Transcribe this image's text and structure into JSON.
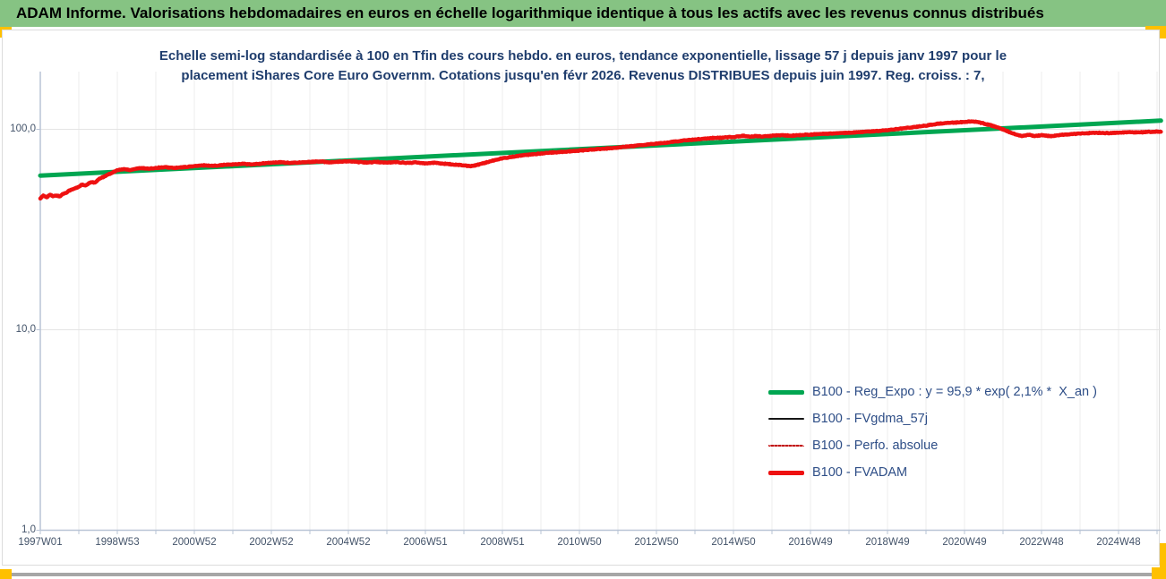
{
  "header": {
    "title": "ADAM Informe. Valorisations hebdomadaires en euros en échelle logarithmique identique à tous les actifs avec les revenus connus distribués"
  },
  "colors": {
    "header_background": "#86c383",
    "accent_yellow": "#ffc000",
    "bottom_bar_gray": "#a6a6a6",
    "title_navy": "#1f3d6d",
    "legend_text": "#2e4e87",
    "axis_label": "#44546a",
    "axis_line": "#b9c4d6",
    "gridline_vertical": "#ececec",
    "gridline_horizontal": "#e4e4e4"
  },
  "chart_data": {
    "type": "line",
    "title_line1": "Echelle semi-log standardisée à 100 en Tfin des cours hebdo. en euros, tendance exponentielle, lissage 57 j depuis janv 1997 pour le",
    "title_line2": "placement iShares Core Euro Governm. Cotations jusqu'en févr 2026. Revenus DISTRIBUES depuis juin 1997. Reg. croiss. : 7,",
    "y_axis": {
      "scale": "log10",
      "range": [
        1,
        183
      ],
      "ticks": [
        {
          "label": "100,0",
          "value": 100
        },
        {
          "label": "10,0",
          "value": 10
        },
        {
          "label": "1,0",
          "value": 1
        }
      ]
    },
    "x_axis": {
      "range_years": [
        1997.0,
        2026.15
      ],
      "gridline_every_years": 1,
      "ticks": [
        {
          "label": "1997W01",
          "year": 1997
        },
        {
          "label": "1998W53",
          "year": 1999
        },
        {
          "label": "2000W52",
          "year": 2001
        },
        {
          "label": "2002W52",
          "year": 2003
        },
        {
          "label": "2004W52",
          "year": 2005
        },
        {
          "label": "2006W51",
          "year": 2007
        },
        {
          "label": "2008W51",
          "year": 2009
        },
        {
          "label": "2010W50",
          "year": 2011
        },
        {
          "label": "2012W50",
          "year": 2013
        },
        {
          "label": "2014W50",
          "year": 2015
        },
        {
          "label": "2016W49",
          "year": 2017
        },
        {
          "label": "2018W49",
          "year": 2019
        },
        {
          "label": "2020W49",
          "year": 2021
        },
        {
          "label": "2022W48",
          "year": 2023
        },
        {
          "label": "2024W48",
          "year": 2025
        }
      ]
    },
    "legend_position": "inside-lower-right",
    "series": [
      {
        "name": "B100 - Reg_Expo : y = 95,9 * exp( 2,1% *  X_an )",
        "color": "#00a651",
        "style": "solid",
        "weight": "thick",
        "width": 5,
        "kind": "exponential-trend",
        "points": [
          [
            1997.0,
            58.8
          ],
          [
            2026.1,
            110.5
          ]
        ]
      },
      {
        "name": "B100 - FVgdma_57j",
        "color": "#161616",
        "style": "solid",
        "weight": "thin",
        "width": 2,
        "kind": "moving-average-of-FVADAM"
      },
      {
        "name": "B100 - Perfo. absolue",
        "color": "#c00000",
        "style": "dotted",
        "weight": "thin",
        "width": 1.5,
        "kind": "coincides-with-FVADAM"
      },
      {
        "name": "B100 - FVADAM",
        "color": "#ee1111",
        "style": "solid",
        "weight": "thick",
        "width": 4.5,
        "kind": "weekly-values",
        "noise": 0.004,
        "points": [
          [
            1997.0,
            45.3
          ],
          [
            1997.08,
            46.6
          ],
          [
            1997.17,
            45.9
          ],
          [
            1997.25,
            47.2
          ],
          [
            1997.33,
            46.3
          ],
          [
            1997.42,
            46.8
          ],
          [
            1997.5,
            46.2
          ],
          [
            1997.58,
            47.5
          ],
          [
            1997.67,
            48.3
          ],
          [
            1997.75,
            49.5
          ],
          [
            1997.83,
            50.1
          ],
          [
            1997.92,
            50.9
          ],
          [
            1998.0,
            51.7
          ],
          [
            1998.08,
            53.0
          ],
          [
            1998.17,
            52.3
          ],
          [
            1998.25,
            53.5
          ],
          [
            1998.33,
            54.7
          ],
          [
            1998.42,
            54.1
          ],
          [
            1998.5,
            55.9
          ],
          [
            1998.58,
            57.3
          ],
          [
            1998.67,
            58.1
          ],
          [
            1998.75,
            59.5
          ],
          [
            1998.83,
            60.3
          ],
          [
            1998.92,
            61.5
          ],
          [
            1999.0,
            62.5
          ],
          [
            1999.17,
            63.3
          ],
          [
            1999.33,
            62.7
          ],
          [
            1999.5,
            63.7
          ],
          [
            1999.67,
            64.1
          ],
          [
            1999.83,
            63.5
          ],
          [
            2000.0,
            64.2
          ],
          [
            2000.25,
            64.7
          ],
          [
            2000.5,
            64.1
          ],
          [
            2000.75,
            64.8
          ],
          [
            2001.0,
            65.5
          ],
          [
            2001.25,
            66.1
          ],
          [
            2001.5,
            65.7
          ],
          [
            2001.75,
            66.4
          ],
          [
            2002.0,
            66.8
          ],
          [
            2002.25,
            67.3
          ],
          [
            2002.5,
            66.7
          ],
          [
            2002.75,
            67.5
          ],
          [
            2003.0,
            68.1
          ],
          [
            2003.25,
            68.5
          ],
          [
            2003.5,
            67.9
          ],
          [
            2003.75,
            68.4
          ],
          [
            2004.0,
            68.7
          ],
          [
            2004.25,
            69.1
          ],
          [
            2004.5,
            68.5
          ],
          [
            2004.75,
            68.9
          ],
          [
            2005.0,
            69.2
          ],
          [
            2005.25,
            68.7
          ],
          [
            2005.5,
            68.3
          ],
          [
            2005.75,
            68.7
          ],
          [
            2006.0,
            68.2
          ],
          [
            2006.25,
            68.6
          ],
          [
            2006.5,
            68.0
          ],
          [
            2006.75,
            68.3
          ],
          [
            2007.0,
            67.7
          ],
          [
            2007.25,
            68.1
          ],
          [
            2007.5,
            67.3
          ],
          [
            2007.75,
            66.7
          ],
          [
            2008.0,
            66.1
          ],
          [
            2008.17,
            65.5
          ],
          [
            2008.33,
            66.3
          ],
          [
            2008.5,
            67.7
          ],
          [
            2008.67,
            69.1
          ],
          [
            2008.83,
            70.5
          ],
          [
            2009.0,
            71.7
          ],
          [
            2009.25,
            72.9
          ],
          [
            2009.5,
            74.1
          ],
          [
            2009.75,
            74.9
          ],
          [
            2010.0,
            75.7
          ],
          [
            2010.25,
            76.5
          ],
          [
            2010.5,
            77.1
          ],
          [
            2010.75,
            77.7
          ],
          [
            2011.0,
            78.3
          ],
          [
            2011.25,
            79.1
          ],
          [
            2011.5,
            79.7
          ],
          [
            2011.75,
            80.3
          ],
          [
            2012.0,
            81.1
          ],
          [
            2012.25,
            82.1
          ],
          [
            2012.5,
            82.9
          ],
          [
            2012.75,
            83.9
          ],
          [
            2013.0,
            84.9
          ],
          [
            2013.25,
            85.7
          ],
          [
            2013.5,
            86.9
          ],
          [
            2013.75,
            88.1
          ],
          [
            2014.0,
            88.9
          ],
          [
            2014.25,
            89.9
          ],
          [
            2014.5,
            90.5
          ],
          [
            2014.75,
            91.0
          ],
          [
            2015.0,
            91.6
          ],
          [
            2015.25,
            92.8
          ],
          [
            2015.42,
            91.9
          ],
          [
            2015.58,
            92.5
          ],
          [
            2015.75,
            92.1
          ],
          [
            2016.0,
            92.9
          ],
          [
            2016.25,
            93.5
          ],
          [
            2016.5,
            92.9
          ],
          [
            2016.75,
            93.6
          ],
          [
            2017.0,
            94.1
          ],
          [
            2017.25,
            94.7
          ],
          [
            2017.5,
            95.1
          ],
          [
            2017.75,
            95.7
          ],
          [
            2018.0,
            96.1
          ],
          [
            2018.25,
            96.7
          ],
          [
            2018.5,
            97.3
          ],
          [
            2018.75,
            98.1
          ],
          [
            2019.0,
            99.0
          ],
          [
            2019.25,
            100.2
          ],
          [
            2019.5,
            101.6
          ],
          [
            2019.75,
            103.0
          ],
          [
            2020.0,
            104.3
          ],
          [
            2020.17,
            105.7
          ],
          [
            2020.33,
            106.7
          ],
          [
            2020.5,
            107.3
          ],
          [
            2020.67,
            107.9
          ],
          [
            2020.83,
            108.3
          ],
          [
            2021.0,
            108.8
          ],
          [
            2021.17,
            109.5
          ],
          [
            2021.33,
            108.8
          ],
          [
            2021.5,
            106.9
          ],
          [
            2021.67,
            104.9
          ],
          [
            2021.83,
            102.6
          ],
          [
            2022.0,
            100.0
          ],
          [
            2022.17,
            96.8
          ],
          [
            2022.33,
            94.2
          ],
          [
            2022.5,
            92.6
          ],
          [
            2022.67,
            93.8
          ],
          [
            2022.83,
            92.6
          ],
          [
            2023.0,
            93.4
          ],
          [
            2023.25,
            92.5
          ],
          [
            2023.5,
            93.8
          ],
          [
            2023.75,
            94.6
          ],
          [
            2024.0,
            95.2
          ],
          [
            2024.25,
            95.8
          ],
          [
            2024.5,
            96.1
          ],
          [
            2024.75,
            95.7
          ],
          [
            2025.0,
            96.3
          ],
          [
            2025.25,
            96.8
          ],
          [
            2025.5,
            96.5
          ],
          [
            2025.75,
            97.0
          ],
          [
            2026.0,
            97.4
          ],
          [
            2026.1,
            97.2
          ]
        ]
      }
    ]
  }
}
